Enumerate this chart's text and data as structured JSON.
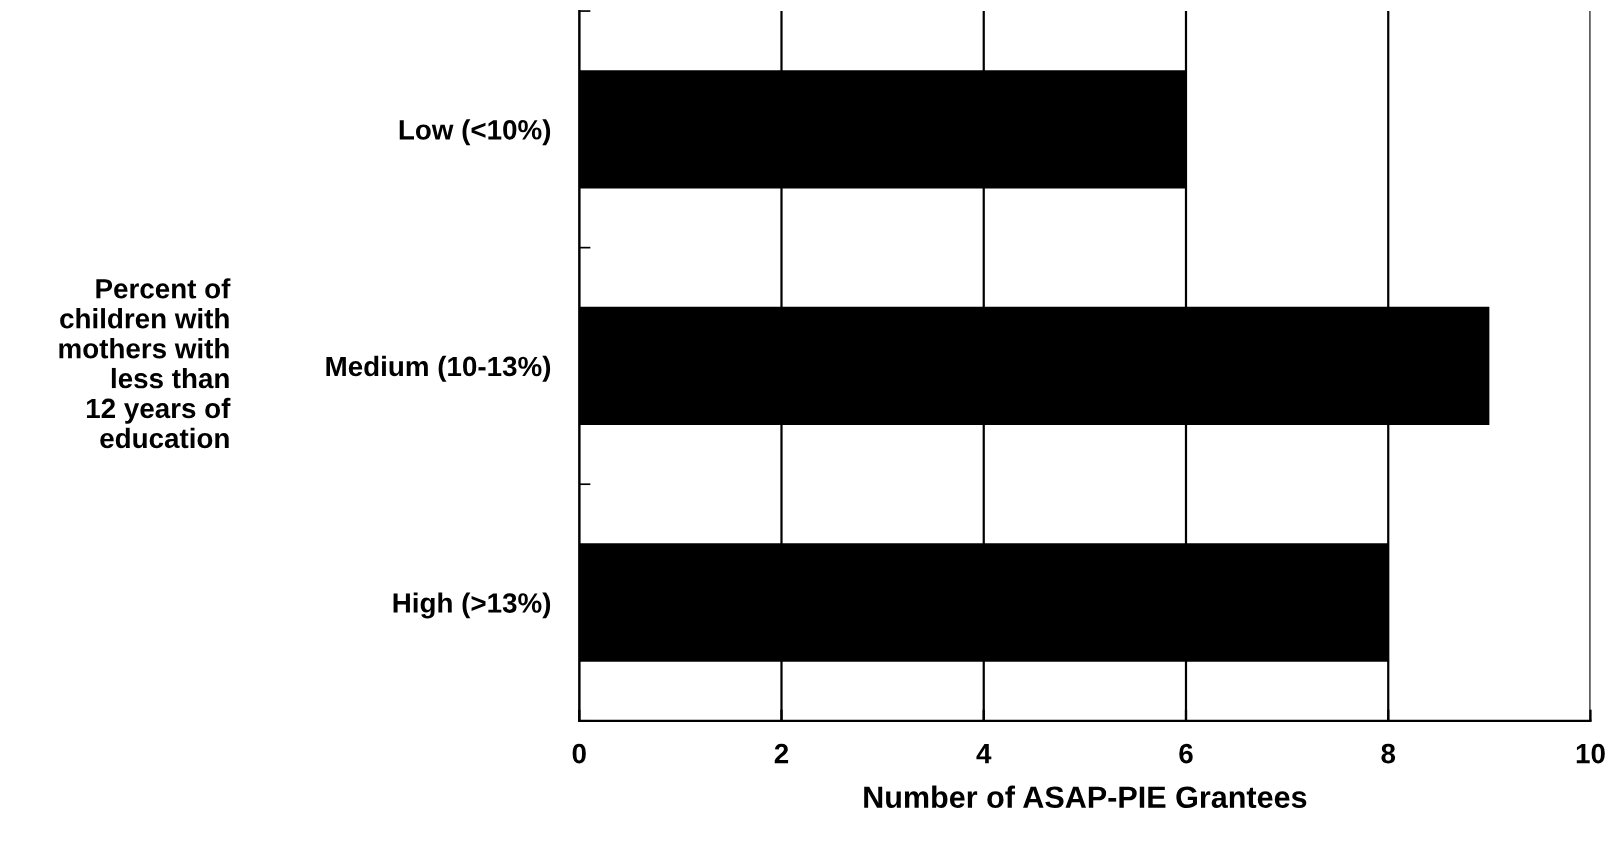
{
  "chart_data": {
    "type": "bar",
    "orientation": "horizontal",
    "categories": [
      "Low (<10%)",
      "Medium (10-13%)",
      "High (>13%)"
    ],
    "values": [
      6,
      9,
      8
    ],
    "color": "#000000",
    "xlabel": "Number of ASAP-PIE Grantees",
    "ylabel": "Percent of\nchildren with\nmothers with\nless than\n12 years of\neducation",
    "xlim": [
      0,
      10
    ],
    "xticks": [
      0,
      2,
      4,
      6,
      8,
      10
    ],
    "grid": "x"
  }
}
